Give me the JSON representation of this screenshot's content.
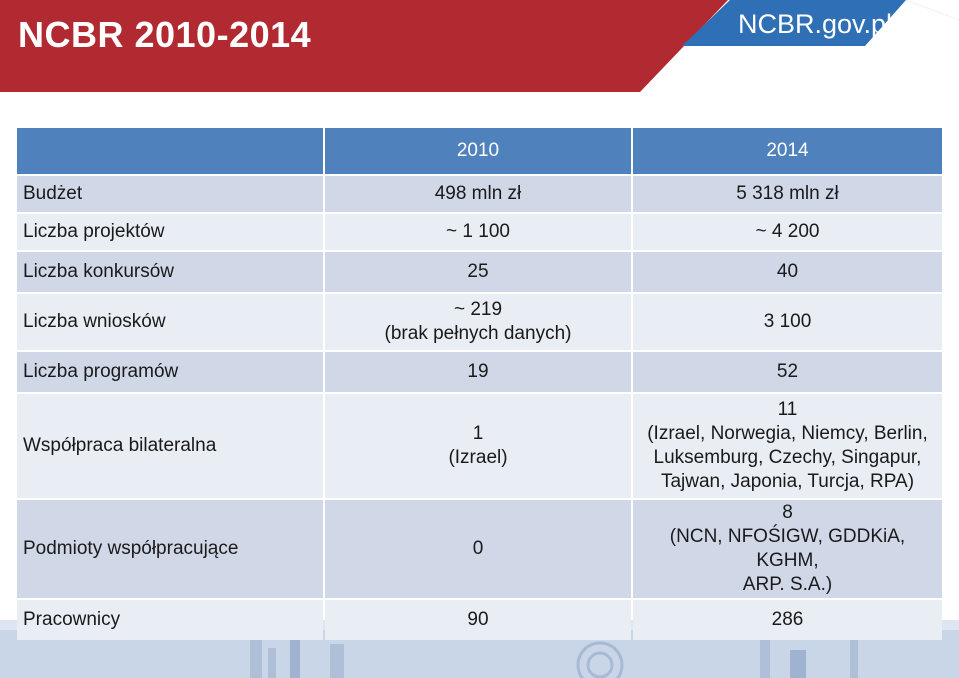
{
  "header": {
    "title": "NCBR 2010-2014",
    "brand": "NCBR.gov.pl",
    "colors": {
      "red": "#b22a31",
      "blue": "#2f6fb5"
    }
  },
  "table": {
    "columns": [
      "",
      "2010",
      "2014"
    ],
    "rows": [
      {
        "label": "Budżet",
        "v2010": "498 mln zł",
        "v2014": "5 318 mln zł"
      },
      {
        "label": "Liczba projektów",
        "v2010": "~ 1 100",
        "v2014": "~ 4 200"
      },
      {
        "label": "Liczba konkursów",
        "v2010": "25",
        "v2014": "40"
      },
      {
        "label": "Liczba wniosków",
        "v2010": "~ 219\n(brak pełnych danych)",
        "v2014": "3 100"
      },
      {
        "label": "Liczba programów",
        "v2010": "19",
        "v2014": "52"
      },
      {
        "label": "Współpraca bilateralna",
        "v2010": "1\n(Izrael)",
        "v2014": "11\n(Izrael, Norwegia, Niemcy, Berlin,\nLuksemburg, Czechy, Singapur,\nTajwan, Japonia, Turcja, RPA)"
      },
      {
        "label": "Podmioty współpracujące",
        "v2010": "0",
        "v2014": "8\n(NCN, NFOŚIGW, GDDKiA, KGHM,\nARP. S.A.)"
      },
      {
        "label": "Pracownicy",
        "v2010": "90",
        "v2014": "286"
      }
    ],
    "colors": {
      "header": "#4f81bd",
      "odd": "#d0d8e8",
      "even": "#e9edf4"
    }
  }
}
